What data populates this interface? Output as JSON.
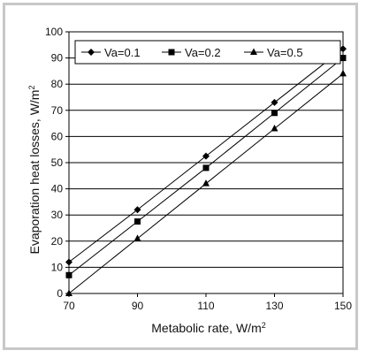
{
  "chart_data": {
    "type": "line",
    "title": "",
    "xlabel": "Metabolic rate, W/m",
    "xlabel_sup": "2",
    "ylabel": "Evaporation heat losses, W/m",
    "ylabel_sup": "2",
    "x": [
      70,
      90,
      110,
      130,
      150
    ],
    "xlim": [
      70,
      150
    ],
    "ylim": [
      0,
      100
    ],
    "xticks": [
      70,
      90,
      110,
      130,
      150
    ],
    "yticks": [
      0,
      10,
      20,
      30,
      40,
      50,
      60,
      70,
      80,
      90,
      100
    ],
    "grid": "horizontal",
    "legend_position": "top-left",
    "series": [
      {
        "name": "Va=0.1",
        "marker": "diamond",
        "values": [
          12,
          32,
          52.5,
          73,
          93.5
        ]
      },
      {
        "name": "Va=0.2",
        "marker": "square",
        "values": [
          7,
          27.5,
          48,
          69,
          90
        ]
      },
      {
        "name": "Va=0.5",
        "marker": "triangle",
        "values": [
          0,
          21,
          42,
          63,
          84
        ]
      }
    ]
  }
}
